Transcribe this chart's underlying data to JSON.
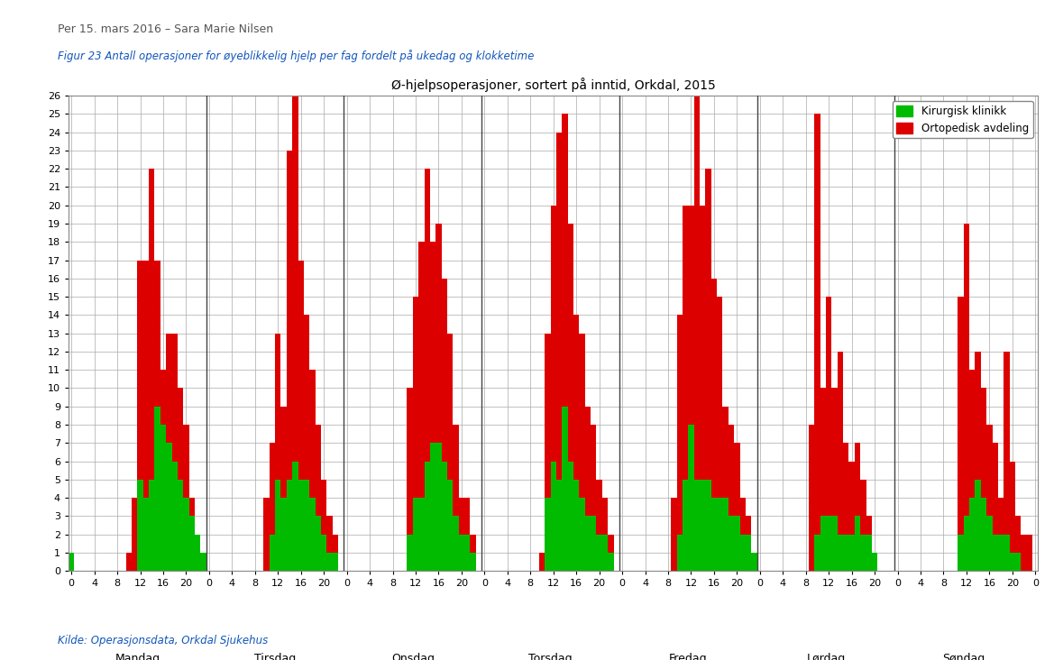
{
  "title": "Ø-hjelpsoperasjoner, sortert på inntid, Orkdal, 2015",
  "header": "Per 15. mars 2016 – Sara Marie Nilsen",
  "subtitle": "Figur 23 Antall operasjoner for øyeblikkelig hjelp per fag fordelt på ukedag og klokketime",
  "footer": "Kilde: Operasjonsdata, Orkdal Sjukehus",
  "days": [
    "Mandag",
    "Tirsdag",
    "Onsdag",
    "Torsdag",
    "Fredag",
    "Lørdag",
    "Søndag"
  ],
  "legend_green": "Kirurgisk klinikk",
  "legend_red": "Ortopedisk avdeling",
  "color_green": "#00BB00",
  "color_red": "#DD0000",
  "ylim_max": 26,
  "green": [
    [
      1,
      0,
      0,
      0,
      0,
      0,
      0,
      0,
      0,
      0,
      0,
      0,
      5,
      4,
      5,
      9,
      8,
      7,
      6,
      5,
      4,
      3,
      2,
      1
    ],
    [
      0,
      0,
      0,
      0,
      0,
      0,
      0,
      0,
      0,
      0,
      0,
      2,
      5,
      4,
      5,
      6,
      5,
      5,
      4,
      3,
      2,
      1,
      1,
      0
    ],
    [
      0,
      0,
      0,
      0,
      0,
      0,
      0,
      0,
      0,
      0,
      0,
      2,
      4,
      4,
      6,
      7,
      7,
      6,
      5,
      3,
      2,
      2,
      1,
      0
    ],
    [
      0,
      0,
      0,
      0,
      0,
      0,
      0,
      0,
      0,
      0,
      0,
      4,
      6,
      5,
      9,
      6,
      5,
      4,
      3,
      3,
      2,
      2,
      1,
      0
    ],
    [
      0,
      0,
      0,
      0,
      0,
      0,
      0,
      0,
      0,
      0,
      2,
      5,
      8,
      5,
      5,
      5,
      4,
      4,
      4,
      3,
      3,
      2,
      2,
      1
    ],
    [
      0,
      0,
      0,
      0,
      0,
      0,
      0,
      0,
      0,
      0,
      2,
      3,
      3,
      3,
      2,
      2,
      2,
      3,
      2,
      2,
      1,
      0,
      0,
      0
    ],
    [
      0,
      0,
      0,
      0,
      0,
      0,
      0,
      0,
      0,
      0,
      0,
      2,
      3,
      4,
      5,
      4,
      3,
      2,
      2,
      2,
      1,
      1,
      0,
      0
    ]
  ],
  "red": [
    [
      0,
      0,
      0,
      0,
      0,
      0,
      0,
      0,
      0,
      0,
      1,
      4,
      12,
      13,
      17,
      8,
      3,
      6,
      7,
      5,
      4,
      1,
      0,
      0
    ],
    [
      0,
      0,
      0,
      0,
      0,
      0,
      0,
      0,
      0,
      0,
      4,
      5,
      8,
      5,
      18,
      22,
      12,
      9,
      7,
      5,
      3,
      2,
      1,
      0
    ],
    [
      0,
      0,
      0,
      0,
      0,
      0,
      0,
      0,
      0,
      0,
      0,
      8,
      11,
      14,
      16,
      11,
      12,
      10,
      8,
      5,
      2,
      2,
      1,
      0
    ],
    [
      0,
      0,
      0,
      0,
      0,
      0,
      0,
      0,
      0,
      0,
      1,
      9,
      14,
      19,
      16,
      13,
      9,
      9,
      6,
      5,
      3,
      2,
      1,
      0
    ],
    [
      0,
      0,
      0,
      0,
      0,
      0,
      0,
      0,
      0,
      4,
      12,
      15,
      12,
      25,
      15,
      17,
      12,
      11,
      5,
      5,
      4,
      2,
      1,
      0
    ],
    [
      0,
      0,
      0,
      0,
      0,
      0,
      0,
      0,
      0,
      8,
      23,
      7,
      12,
      7,
      10,
      5,
      4,
      4,
      3,
      1,
      0,
      0,
      0,
      0
    ],
    [
      0,
      0,
      0,
      0,
      0,
      0,
      0,
      0,
      0,
      0,
      0,
      13,
      16,
      7,
      7,
      6,
      5,
      5,
      2,
      10,
      5,
      2,
      2,
      2
    ]
  ]
}
